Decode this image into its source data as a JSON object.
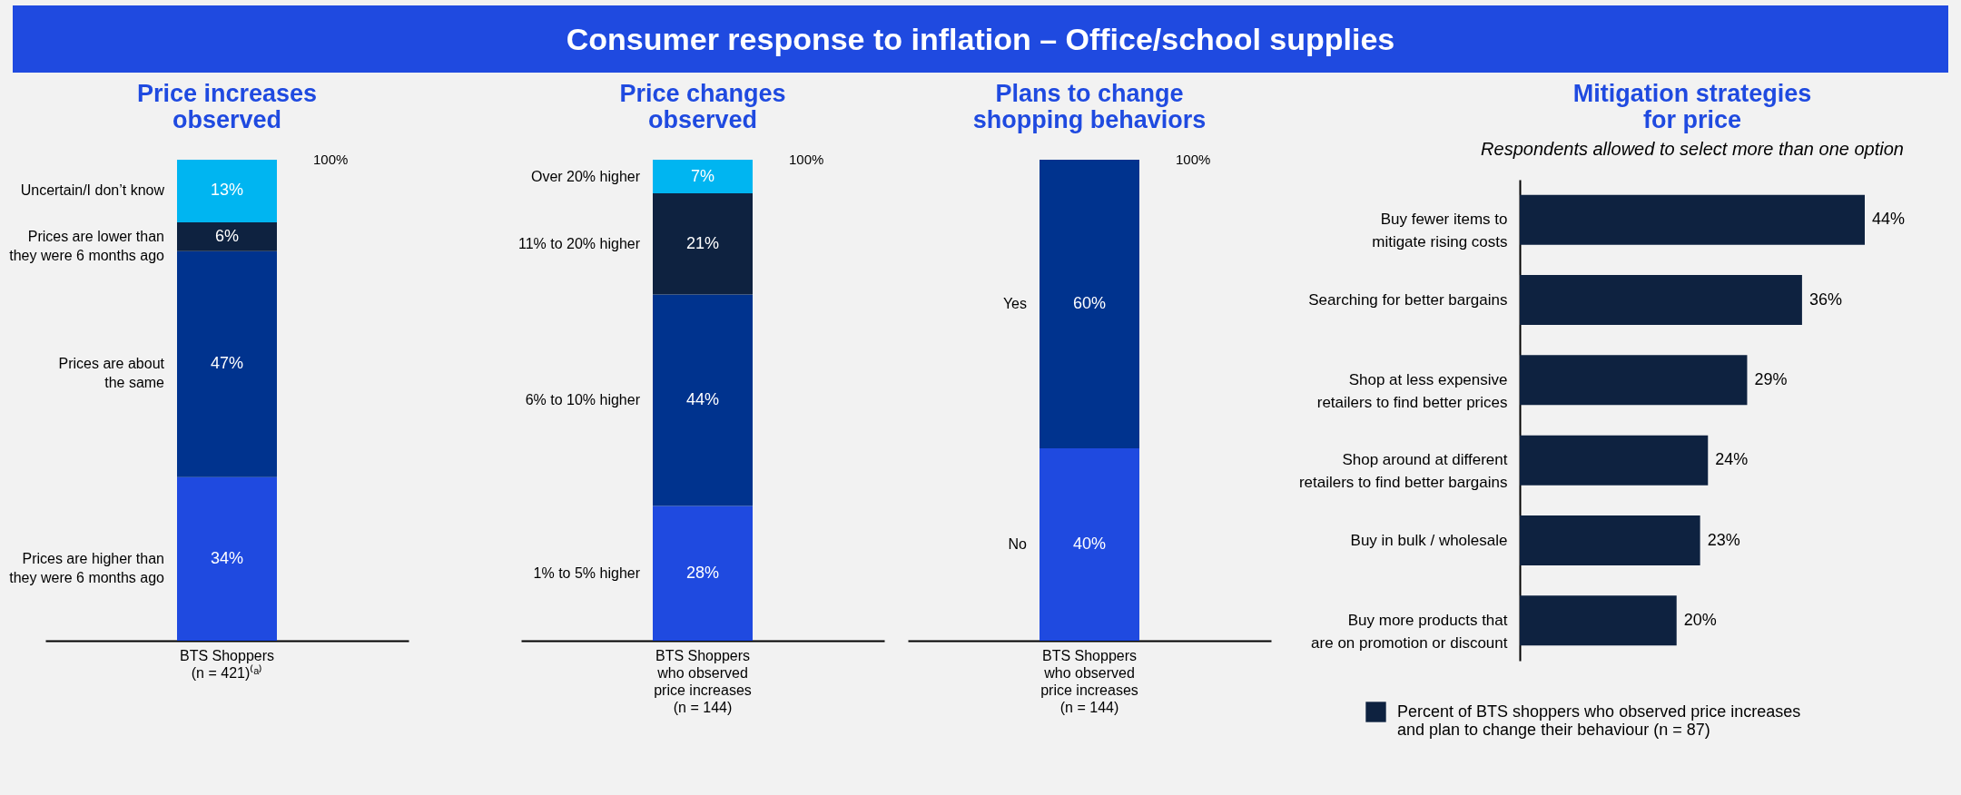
{
  "chart_data": [
    {
      "type": "other",
      "title": "Consumer response to inflation – Office/school supplies"
    },
    {
      "type": "bar",
      "title": "Price increases\nobserved",
      "stacked": true,
      "tick_labels": "x",
      "categories": [
        "BTS Shoppers\n(n = 421)⁽ᵃ⁾"
      ],
      "annotations": [
        "100%"
      ],
      "series": [
        {
          "name": "Prices are higher than\nthey were 6 months ago",
          "color": "#1f4ae0",
          "values": [
            34
          ],
          "value_labels": [
            "34%"
          ]
        },
        {
          "name": "Prices are about\nthe same",
          "color": "#00338e",
          "values": [
            47
          ],
          "value_labels": [
            "47%"
          ]
        },
        {
          "name": "Prices are lower than\nthey were 6 months ago",
          "color": "#0e2240",
          "values": [
            6
          ],
          "value_labels": [
            "6%"
          ]
        },
        {
          "name": "Uncertain/I don’t know",
          "color": "#00b5f1",
          "values": [
            13
          ],
          "value_labels": [
            "13%"
          ]
        }
      ]
    },
    {
      "type": "bar",
      "title": "Price changes\nobserved",
      "stacked": true,
      "tick_labels": "x",
      "categories": [
        "BTS Shoppers\nwho observed\nprice increases\n(n = 144)"
      ],
      "annotations": [
        "100%"
      ],
      "series": [
        {
          "name": "1% to 5% higher",
          "color": "#1f4ae0",
          "values": [
            28
          ],
          "value_labels": [
            "28%"
          ]
        },
        {
          "name": "6% to 10% higher",
          "color": "#00338e",
          "values": [
            44
          ],
          "value_labels": [
            "44%"
          ]
        },
        {
          "name": "11% to 20% higher",
          "color": "#0e2240",
          "values": [
            21
          ],
          "value_labels": [
            "21%"
          ]
        },
        {
          "name": "Over 20% higher",
          "color": "#00b5f1",
          "values": [
            7
          ],
          "value_labels": [
            "7%"
          ]
        }
      ]
    },
    {
      "type": "bar",
      "title": "Plans to change\nshopping behaviors",
      "stacked": true,
      "tick_labels": "x",
      "categories": [
        "BTS Shoppers\nwho observed\nprice increases\n(n = 144)"
      ],
      "annotations": [
        "100%"
      ],
      "series": [
        {
          "name": "No",
          "color": "#1f4ae0",
          "values": [
            40
          ],
          "value_labels": [
            "40%"
          ]
        },
        {
          "name": "Yes",
          "color": "#00338e",
          "values": [
            60
          ],
          "value_labels": [
            "60%"
          ]
        }
      ]
    },
    {
      "type": "bar",
      "orientation": "horizontal",
      "title": "Mitigation strategies\nfor price",
      "subtitle": "Respondents allowed to select more than one option",
      "tick_labels": "y",
      "legend": "bottom",
      "categories": [
        "Buy fewer items to\nmitigate rising costs",
        "Searching for better bargains",
        "Shop at less expensive\nretailers to find better prices",
        "Shop around at different\nretailers to find better bargains",
        "Buy in bulk / wholesale",
        "Buy more products that\nare on promotion or discount"
      ],
      "series": [
        {
          "name": "Percent of BTS shoppers who observed price increases\nand plan to change their behaviour (n = 87)",
          "color": "#0e2240",
          "values": [
            44,
            36,
            29,
            24,
            23,
            20
          ],
          "value_labels": [
            "44%",
            "36%",
            "29%",
            "24%",
            "23%",
            "20%"
          ]
        }
      ]
    }
  ]
}
